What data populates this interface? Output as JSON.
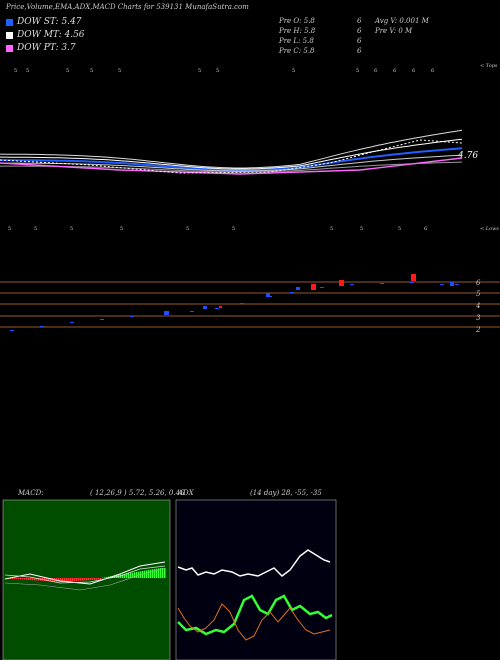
{
  "header": {
    "title": "Price,Volume,EMA,ADX,MACD Charts for 539131 MunafaSutra.com"
  },
  "legend": [
    {
      "label": "DOW ST: 5.47",
      "color": "#1f5fff"
    },
    {
      "label": "DOW MT: 4.56",
      "color": "#ffffff"
    },
    {
      "label": "DOW PT: 3.7",
      "color": "#ff66ff"
    }
  ],
  "stats": {
    "pre_open": "Pre  O: 5.8",
    "pre_high": "Pre  H: 5.8",
    "pre_low": "Pre  L: 5.8",
    "pre_close": "Pre  C: 5.8",
    "six_1": "6",
    "six_2": "6",
    "six_3": "6",
    "six_4": "6",
    "avg_volume": "Avg V: 0.001  M",
    "prev_volume": "Pre  V: 0  M"
  },
  "price_panel": {
    "top_tag": "< Tops",
    "lows_tag": "< Lows",
    "last_price": "4.76",
    "tops_digits": [
      "5",
      "5",
      "5",
      "5",
      "5",
      "5",
      "5",
      "5",
      "5",
      "6",
      "6",
      "6",
      "6"
    ],
    "lows_digits": [
      "5",
      "5",
      "5",
      "5",
      "5",
      "5",
      "5",
      "5",
      "5",
      "6"
    ]
  },
  "levels": {
    "labels": [
      "6",
      "5",
      "4",
      "3",
      "2"
    ],
    "colors": {
      "line": "#c8743a",
      "up": "#1f4fff",
      "down": "#ff1a1a"
    }
  },
  "macd": {
    "label": "MACD:",
    "params": "( 12,26,9 ) 5.72, 5.26, 0.46"
  },
  "adx": {
    "label": "ADX",
    "params": "(14  day) 28, -55, -35"
  },
  "chart_data": [
    {
      "type": "line",
      "title": "Price,Volume,EMA,ADX,MACD Charts for 539131 MunafaSutra.com",
      "series": [
        {
          "name": "DOW ST",
          "last": 5.47
        },
        {
          "name": "DOW MT",
          "last": 4.56
        },
        {
          "name": "DOW PT",
          "last": 3.7
        }
      ],
      "last_price": 4.76
    },
    {
      "type": "line",
      "title": "MACD",
      "params": [
        12,
        26,
        9
      ],
      "values": {
        "macd": 5.72,
        "signal": 5.26,
        "histogram": 0.46
      }
    },
    {
      "type": "line",
      "title": "ADX",
      "params": 14,
      "values": {
        "adx": 28,
        "plus_di": -55,
        "minus_di": -35
      }
    }
  ]
}
